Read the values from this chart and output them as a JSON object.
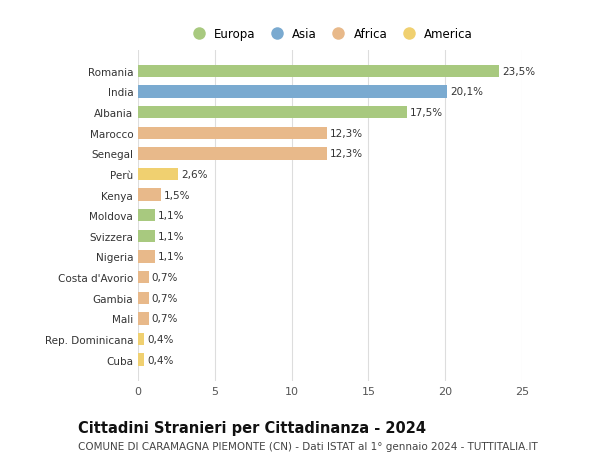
{
  "countries": [
    "Romania",
    "India",
    "Albania",
    "Marocco",
    "Senegal",
    "Perù",
    "Kenya",
    "Moldova",
    "Svizzera",
    "Nigeria",
    "Costa d'Avorio",
    "Gambia",
    "Mali",
    "Rep. Dominicana",
    "Cuba"
  ],
  "values": [
    23.5,
    20.1,
    17.5,
    12.3,
    12.3,
    2.6,
    1.5,
    1.1,
    1.1,
    1.1,
    0.7,
    0.7,
    0.7,
    0.4,
    0.4
  ],
  "labels": [
    "23,5%",
    "20,1%",
    "17,5%",
    "12,3%",
    "12,3%",
    "2,6%",
    "1,5%",
    "1,1%",
    "1,1%",
    "1,1%",
    "0,7%",
    "0,7%",
    "0,7%",
    "0,4%",
    "0,4%"
  ],
  "continents": [
    "Europa",
    "Asia",
    "Europa",
    "Africa",
    "Africa",
    "America",
    "Africa",
    "Europa",
    "Europa",
    "Africa",
    "Africa",
    "Africa",
    "Africa",
    "America",
    "America"
  ],
  "colors": {
    "Europa": "#a8c97f",
    "Asia": "#7aaad0",
    "Africa": "#e8b98a",
    "America": "#f0d070"
  },
  "legend_order": [
    "Europa",
    "Asia",
    "Africa",
    "America"
  ],
  "title": "Cittadini Stranieri per Cittadinanza - 2024",
  "subtitle": "COMUNE DI CARAMAGNA PIEMONTE (CN) - Dati ISTAT al 1° gennaio 2024 - TUTTITALIA.IT",
  "xlim": [
    0,
    25
  ],
  "xticks": [
    0,
    5,
    10,
    15,
    20,
    25
  ],
  "background_color": "#ffffff",
  "grid_color": "#dddddd",
  "bar_height": 0.6,
  "title_fontsize": 10.5,
  "subtitle_fontsize": 7.5,
  "label_fontsize": 7.5,
  "ytick_fontsize": 7.5,
  "xtick_fontsize": 8,
  "legend_fontsize": 8.5
}
